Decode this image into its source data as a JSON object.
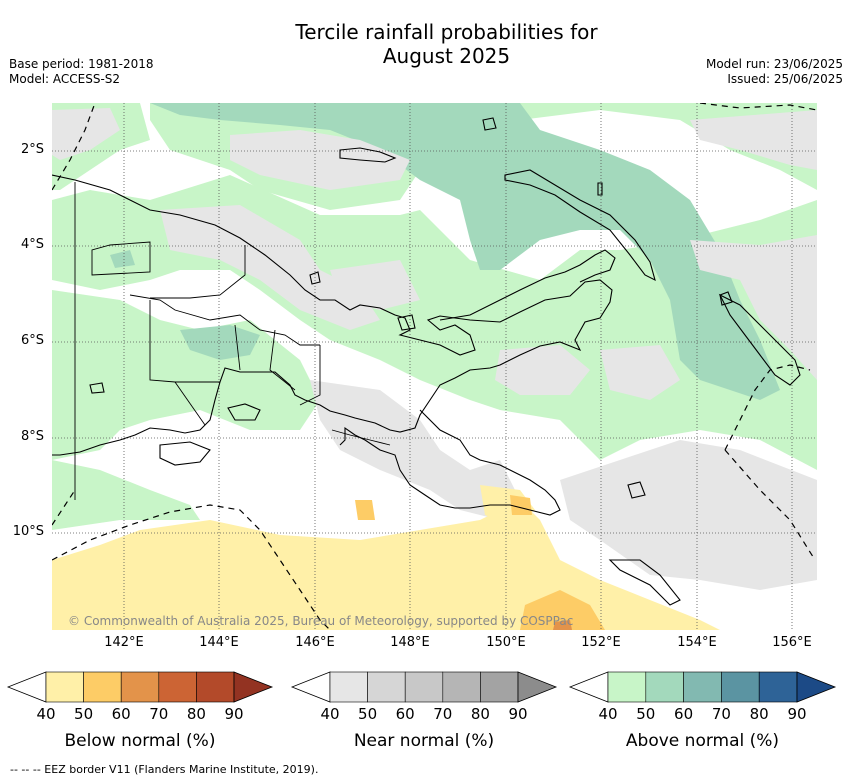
{
  "title_line1": "Tercile rainfall probabilities for",
  "title_line2": "August 2025",
  "base_period": "Base period: 1981-2018",
  "model": "Model: ACCESS-S2",
  "model_run": "Model run: 23/06/2025",
  "issued": "Issued: 25/06/2025",
  "copyright": "© Commonwealth of Australia 2025, Bureau of Meteorology, supported by COSPPac",
  "lat_labels": [
    "2°S",
    "4°S",
    "6°S",
    "8°S",
    "10°S"
  ],
  "lon_labels": [
    "142°E",
    "144°E",
    "146°E",
    "148°E",
    "150°E",
    "152°E",
    "154°E",
    "156°E"
  ],
  "colorbars": [
    {
      "label": "Below normal (%)",
      "ticks": [
        "40",
        "50",
        "60",
        "70",
        "80",
        "90"
      ],
      "colors": [
        "#fff0a8",
        "#fdcc66",
        "#e3934a",
        "#cc6434",
        "#b34a2a",
        "#933322"
      ]
    },
    {
      "label": "Near normal (%)",
      "ticks": [
        "40",
        "50",
        "60",
        "70",
        "80",
        "90"
      ],
      "colors": [
        "#e6e6e6",
        "#d6d6d6",
        "#c8c8c8",
        "#b5b5b5",
        "#a3a3a3",
        "#8c8c8c"
      ]
    },
    {
      "label": "Above normal (%)",
      "ticks": [
        "40",
        "50",
        "60",
        "70",
        "80",
        "90"
      ],
      "colors": [
        "#c8f5c8",
        "#a3d9bc",
        "#82b9b1",
        "#5b94a2",
        "#2e6397",
        "#1c4a86"
      ]
    }
  ],
  "footer": "-- -- -- EEZ border V11 (Flanders Marine Institute, 2019)."
}
